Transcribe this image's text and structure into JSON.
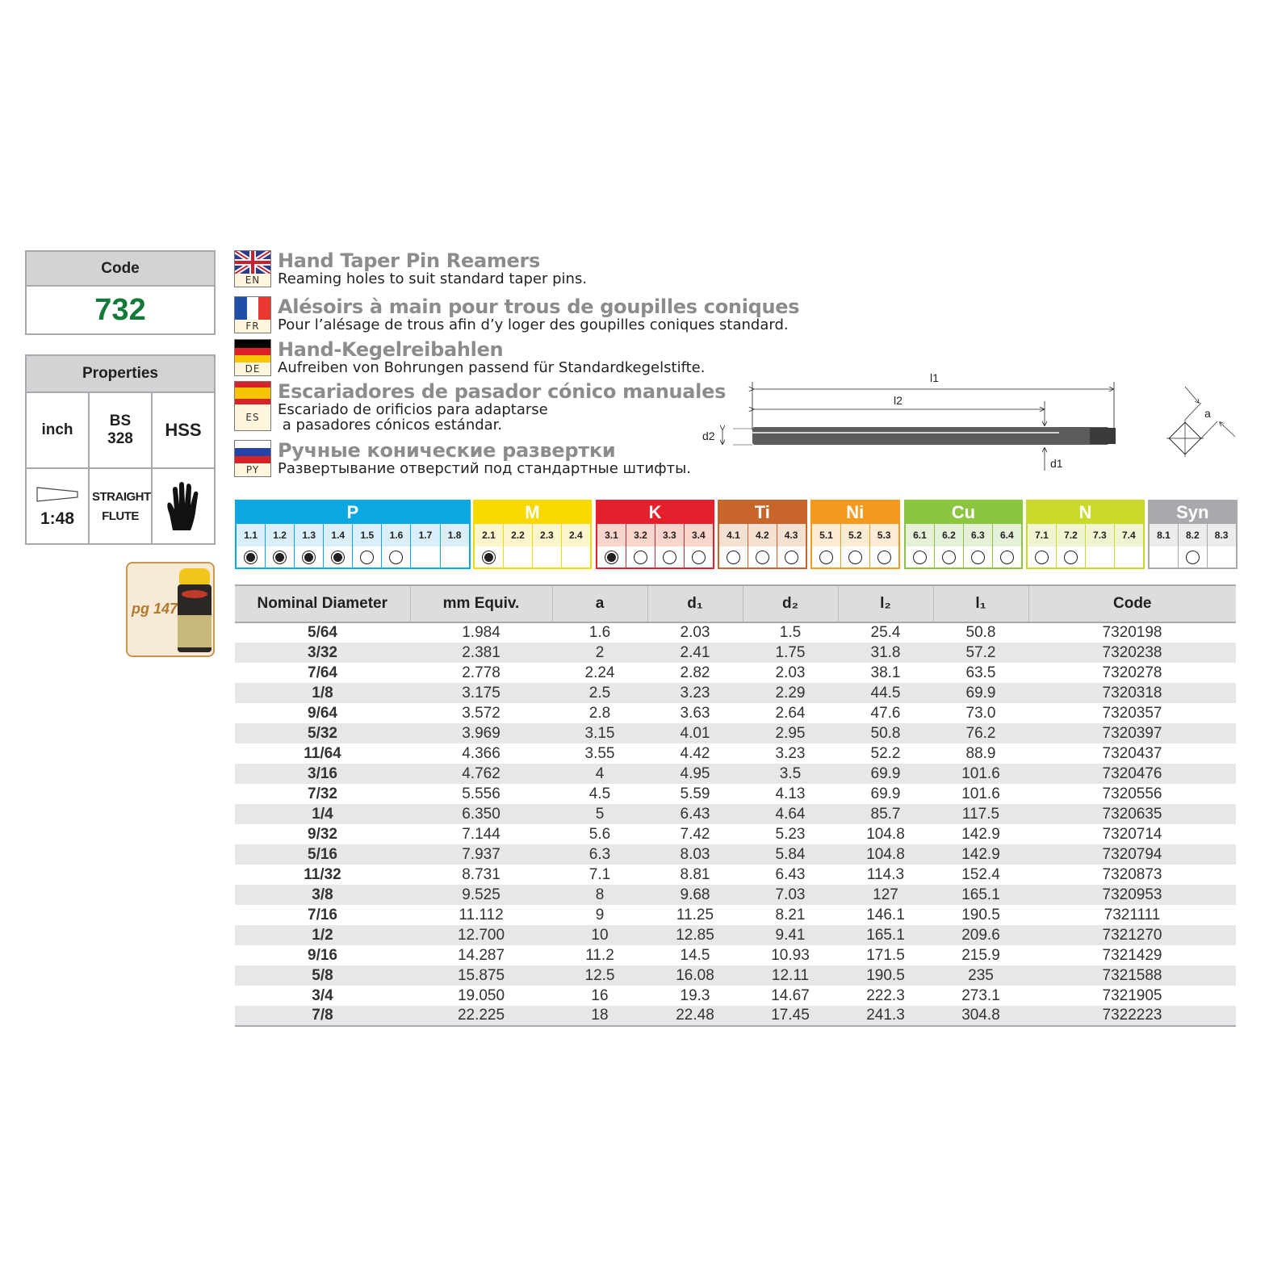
{
  "code_box": {
    "label": "Code",
    "value": "732"
  },
  "properties": {
    "label": "Properties",
    "unit": "inch",
    "standard": "BS 328",
    "material": "HSS",
    "taper": "1:48",
    "flute": "STRAIGHT FLUTE",
    "operation_icon": "hand-glove-icon"
  },
  "accessory": {
    "label": "pg 147",
    "icon": "cutting-fluid-spray-can"
  },
  "languages": [
    {
      "code": "EN",
      "title": "Hand Taper Pin Reamers",
      "desc": [
        "Reaming holes to suit standard taper pins."
      ]
    },
    {
      "code": "FR",
      "title": "Alésoirs à main pour trous de goupilles coniques",
      "desc": [
        "Pour l’alésage de trous afin d’y loger des goupilles coniques standard."
      ]
    },
    {
      "code": "DE",
      "title": "Hand-Kegelreibahlen",
      "desc": [
        "Aufreiben von Bohrungen passend für Standardkegelstifte."
      ]
    },
    {
      "code": "ES",
      "title": "Escariadores de pasador cónico manuales",
      "desc": [
        "Escariado de orificios para adaptarse",
        " a pasadores cónicos estándar."
      ]
    },
    {
      "code": "PY",
      "title": "Ручные конические развертки",
      "desc": [
        "Развертывание отверстий под стандартные штифты."
      ]
    }
  ],
  "diagram": {
    "labels": {
      "l1": "l1",
      "l2": "l2",
      "d1": "d1",
      "d2": "d2",
      "a": "a"
    }
  },
  "materials": [
    {
      "group": "P",
      "color": "#0aa8e0",
      "light": "#dbeffa",
      "subs": [
        "1.1",
        "1.2",
        "1.3",
        "1.4",
        "1.5",
        "1.6",
        "1.7",
        "1.8"
      ],
      "suit": [
        "full",
        "full",
        "full",
        "full",
        "empty",
        "empty",
        "none",
        "none"
      ]
    },
    {
      "group": "M",
      "color": "#f7d800",
      "light": "#fdf5cc",
      "subs": [
        "2.1",
        "2.2",
        "2.3",
        "2.4"
      ],
      "suit": [
        "full",
        "none",
        "none",
        "none"
      ]
    },
    {
      "group": "K",
      "color": "#e3202b",
      "light": "#f9d5cb",
      "subs": [
        "3.1",
        "3.2",
        "3.3",
        "3.4"
      ],
      "suit": [
        "full",
        "empty",
        "empty",
        "empty"
      ]
    },
    {
      "group": "Ti",
      "color": "#c7652b",
      "light": "#f4e1d2",
      "subs": [
        "4.1",
        "4.2",
        "4.3"
      ],
      "suit": [
        "empty",
        "empty",
        "empty"
      ]
    },
    {
      "group": "Ni",
      "color": "#f39a1f",
      "light": "#fdebd3",
      "subs": [
        "5.1",
        "5.2",
        "5.3"
      ],
      "suit": [
        "empty",
        "empty",
        "empty"
      ]
    },
    {
      "group": "Cu",
      "color": "#8cc63f",
      "light": "#e4f1d8",
      "subs": [
        "6.1",
        "6.2",
        "6.3",
        "6.4"
      ],
      "suit": [
        "empty",
        "empty",
        "empty",
        "empty"
      ]
    },
    {
      "group": "N",
      "color": "#c9da2a",
      "light": "#f0f4d0",
      "subs": [
        "7.1",
        "7.2",
        "7.3",
        "7.4"
      ],
      "suit": [
        "empty",
        "empty",
        "none",
        "none"
      ]
    },
    {
      "group": "Syn",
      "color": "#a7a9ac",
      "light": "#ececec",
      "subs": [
        "8.1",
        "8.2",
        "8.3"
      ],
      "suit": [
        "none",
        "empty",
        "none"
      ]
    }
  ],
  "table": {
    "headers": [
      "Nominal Diameter",
      "mm Equiv.",
      "a",
      "d₁",
      "d₂",
      "l₂",
      "l₁",
      "Code"
    ],
    "rows": [
      [
        "5/64",
        "1.984",
        "1.6",
        "2.03",
        "1.5",
        "25.4",
        "50.8",
        "7320198"
      ],
      [
        "3/32",
        "2.381",
        "2",
        "2.41",
        "1.75",
        "31.8",
        "57.2",
        "7320238"
      ],
      [
        "7/64",
        "2.778",
        "2.24",
        "2.82",
        "2.03",
        "38.1",
        "63.5",
        "7320278"
      ],
      [
        "1/8",
        "3.175",
        "2.5",
        "3.23",
        "2.29",
        "44.5",
        "69.9",
        "7320318"
      ],
      [
        "9/64",
        "3.572",
        "2.8",
        "3.63",
        "2.64",
        "47.6",
        "73.0",
        "7320357"
      ],
      [
        "5/32",
        "3.969",
        "3.15",
        "4.01",
        "2.95",
        "50.8",
        "76.2",
        "7320397"
      ],
      [
        "11/64",
        "4.366",
        "3.55",
        "4.42",
        "3.23",
        "52.2",
        "88.9",
        "7320437"
      ],
      [
        "3/16",
        "4.762",
        "4",
        "4.95",
        "3.5",
        "69.9",
        "101.6",
        "7320476"
      ],
      [
        "7/32",
        "5.556",
        "4.5",
        "5.59",
        "4.13",
        "69.9",
        "101.6",
        "7320556"
      ],
      [
        "1/4",
        "6.350",
        "5",
        "6.43",
        "4.64",
        "85.7",
        "117.5",
        "7320635"
      ],
      [
        "9/32",
        "7.144",
        "5.6",
        "7.42",
        "5.23",
        "104.8",
        "142.9",
        "7320714"
      ],
      [
        "5/16",
        "7.937",
        "6.3",
        "8.03",
        "5.84",
        "104.8",
        "142.9",
        "7320794"
      ],
      [
        "11/32",
        "8.731",
        "7.1",
        "8.81",
        "6.43",
        "114.3",
        "152.4",
        "7320873"
      ],
      [
        "3/8",
        "9.525",
        "8",
        "9.68",
        "7.03",
        "127",
        "165.1",
        "7320953"
      ],
      [
        "7/16",
        "11.112",
        "9",
        "11.25",
        "8.21",
        "146.1",
        "190.5",
        "7321111"
      ],
      [
        "1/2",
        "12.700",
        "10",
        "12.85",
        "9.41",
        "165.1",
        "209.6",
        "7321270"
      ],
      [
        "9/16",
        "14.287",
        "11.2",
        "14.5",
        "10.93",
        "171.5",
        "215.9",
        "7321429"
      ],
      [
        "5/8",
        "15.875",
        "12.5",
        "16.08",
        "12.11",
        "190.5",
        "235",
        "7321588"
      ],
      [
        "3/4",
        "19.050",
        "16",
        "19.3",
        "14.67",
        "222.3",
        "273.1",
        "7321905"
      ],
      [
        "7/8",
        "22.225",
        "18",
        "22.48",
        "17.45",
        "241.3",
        "304.8",
        "7322223"
      ]
    ]
  }
}
